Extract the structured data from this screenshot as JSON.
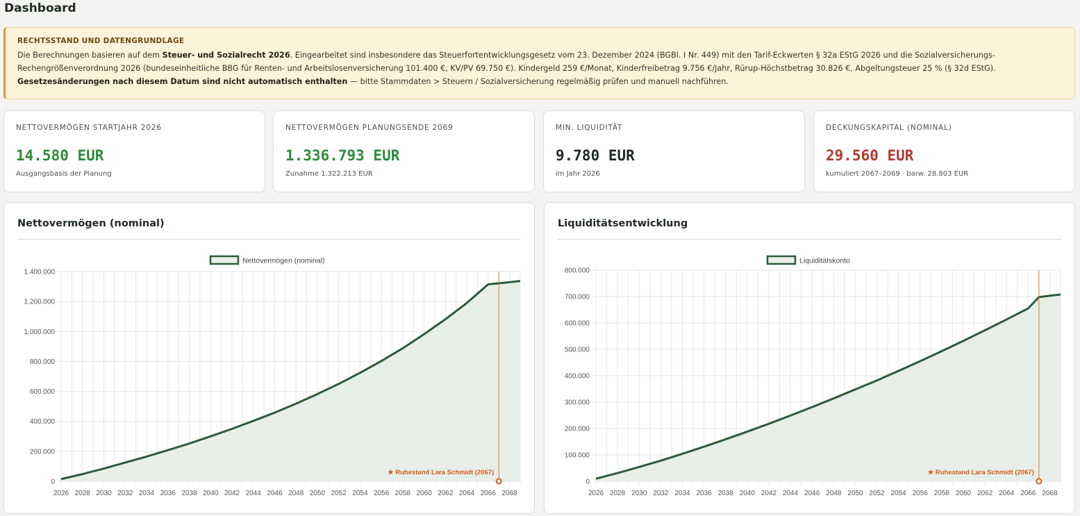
{
  "page": {
    "title": "Dashboard"
  },
  "notice": {
    "heading": "RECHTSSTAND UND DATENGRUNDLAGE",
    "line1_pre": "Die Berechnungen basieren auf dem ",
    "line1_bold": "Steuer- und Sozialrecht 2026",
    "line1_post": ". Eingearbeitet sind insbesondere das Steuerfortentwicklungsgesetz vom 23. Dezember 2024 (BGBl. I Nr. 449) mit den Tarif-Eckwerten § 32a EStG 2026 und die Sozialversicherungs-Rechengrößenverordnung 2026 (bundeseinheitliche BBG für Renten- und Arbeitslosenversicherung 101.400 €, KV/PV 69.750 €). Kindergeld 259 €/Monat, Kinderfreibetrag 9.756 €/Jahr, Rürup-Höchstbetrag 30.826 €, Abgeltungsteuer 25 % (§ 32d EStG).",
    "line2_bold": "Gesetzesänderungen nach diesem Datum sind nicht automatisch enthalten",
    "line2_post": " — bitte Stammdaten > Steuern / Sozialversicherung regelmäßig prüfen und manuell nachführen."
  },
  "kpis": [
    {
      "label": "NETTOVERMÖGEN STARTJAHR 2026",
      "value": "14.580 EUR",
      "sub": "Ausgangsbasis der Planung",
      "color": "#2e8b3a"
    },
    {
      "label": "NETTOVERMÖGEN PLANUNGSENDE 2069",
      "value": "1.336.793 EUR",
      "sub": "Zunahme 1.322.213 EUR",
      "color": "#2e8b3a"
    },
    {
      "label": "MIN. LIQUIDITÄT",
      "value": "9.780 EUR",
      "sub": "im Jahr 2026",
      "color": "#1f2a22"
    },
    {
      "label": "DECKUNGSKAPITAL (NOMINAL)",
      "value": "29.560 EUR",
      "sub": "kumuliert 2067–2069 · barw. 28.803 EUR",
      "color": "#b03a2e"
    }
  ],
  "colors": {
    "line": "#2d5a3a",
    "fill": "#e7efe8",
    "marker": "#e07a3a"
  },
  "chart_data": [
    {
      "type": "area",
      "title": "Nettovermögen (nominal)",
      "legend": "Nettovermögen (nominal)",
      "legend_position": "top-center",
      "grid": true,
      "ylim": [
        0,
        1400000
      ],
      "yticks": [
        0,
        200000,
        400000,
        600000,
        800000,
        1000000,
        1200000,
        1400000
      ],
      "ytick_labels": [
        "0",
        "200.000",
        "400.000",
        "600.000",
        "800.000",
        "1.000.000",
        "1.200.000",
        "1.400.000"
      ],
      "xlim": [
        2026,
        2069
      ],
      "xticks": [
        2026,
        2028,
        2030,
        2032,
        2034,
        2036,
        2038,
        2040,
        2042,
        2044,
        2046,
        2048,
        2050,
        2052,
        2054,
        2056,
        2058,
        2060,
        2062,
        2064,
        2066,
        2068
      ],
      "x": [
        2026,
        2028,
        2030,
        2032,
        2034,
        2036,
        2038,
        2040,
        2042,
        2044,
        2046,
        2048,
        2050,
        2052,
        2054,
        2056,
        2058,
        2060,
        2062,
        2064,
        2066,
        2067,
        2068,
        2069
      ],
      "values": [
        14580,
        48000,
        85000,
        125000,
        165000,
        208000,
        252000,
        300000,
        350000,
        403000,
        458000,
        518000,
        582000,
        650000,
        724000,
        803000,
        888000,
        982000,
        1082000,
        1190000,
        1315000,
        1322000,
        1329000,
        1336793
      ],
      "marker": {
        "x": 2067,
        "label": "★ Ruhestand Lara Schmidt (2067)"
      }
    },
    {
      "type": "area",
      "title": "Liquiditätsentwicklung",
      "legend": "Liquiditätskonto",
      "legend_position": "top-center",
      "grid": true,
      "ylim": [
        0,
        800000
      ],
      "yticks": [
        0,
        100000,
        200000,
        300000,
        400000,
        500000,
        600000,
        700000,
        800000
      ],
      "ytick_labels": [
        "0",
        "100.000",
        "200.000",
        "300.000",
        "400.000",
        "500.000",
        "600.000",
        "700.000",
        "800.000"
      ],
      "xlim": [
        2026,
        2069
      ],
      "xticks": [
        2026,
        2028,
        2030,
        2032,
        2034,
        2036,
        2038,
        2040,
        2042,
        2044,
        2046,
        2048,
        2050,
        2052,
        2054,
        2056,
        2058,
        2060,
        2062,
        2064,
        2066,
        2068
      ],
      "x": [
        2026,
        2028,
        2030,
        2032,
        2034,
        2036,
        2038,
        2040,
        2042,
        2044,
        2046,
        2048,
        2050,
        2052,
        2054,
        2056,
        2058,
        2060,
        2062,
        2064,
        2066,
        2067,
        2068,
        2069
      ],
      "values": [
        9780,
        31000,
        54000,
        78000,
        104000,
        131000,
        159000,
        188000,
        218000,
        249000,
        281000,
        314000,
        348000,
        382000,
        418000,
        455000,
        493000,
        532000,
        572000,
        613000,
        655000,
        698000,
        703000,
        708000
      ],
      "marker": {
        "x": 2067,
        "label": "★ Ruhestand Lara Schmidt (2067)"
      }
    }
  ]
}
